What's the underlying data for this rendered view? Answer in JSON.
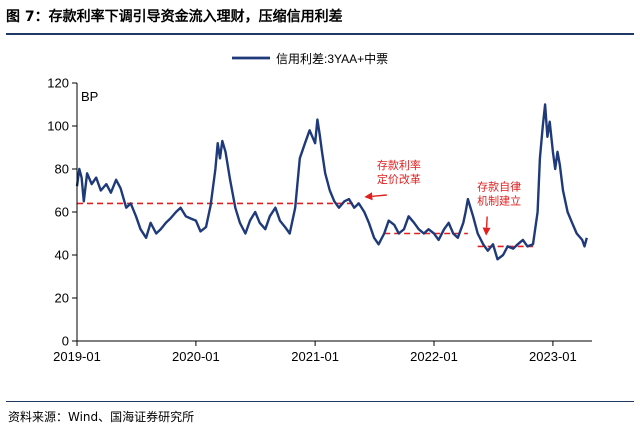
{
  "figure": {
    "title": "图 7：存款利率下调引导资金流入理财，压缩信用利差",
    "source": "资料来源：Wind、国海证券研究所"
  },
  "chart_data": {
    "type": "line",
    "title": "",
    "xlabel": "",
    "ylabel": "",
    "unit_label": "BP",
    "xlim": [
      "2019-01",
      "2023-05"
    ],
    "ylim": [
      0,
      120
    ],
    "y_ticks": [
      0,
      20,
      40,
      60,
      80,
      100,
      120
    ],
    "x_ticks": [
      "2019-01",
      "2020-01",
      "2021-01",
      "2022-01",
      "2023-01"
    ],
    "grid": false,
    "legend": "top-center",
    "series": [
      {
        "name": "信用利差:3YAA+中票",
        "color": "#1f3a7a",
        "points": [
          [
            "2019-01-01",
            72
          ],
          [
            "2019-01-08",
            80
          ],
          [
            "2019-01-15",
            76
          ],
          [
            "2019-01-22",
            65
          ],
          [
            "2019-02-01",
            78
          ],
          [
            "2019-02-15",
            73
          ],
          [
            "2019-03-01",
            76
          ],
          [
            "2019-03-15",
            70
          ],
          [
            "2019-04-01",
            73
          ],
          [
            "2019-04-15",
            69
          ],
          [
            "2019-05-01",
            75
          ],
          [
            "2019-05-15",
            71
          ],
          [
            "2019-06-01",
            62
          ],
          [
            "2019-06-15",
            64
          ],
          [
            "2019-07-01",
            58
          ],
          [
            "2019-07-15",
            52
          ],
          [
            "2019-08-01",
            48
          ],
          [
            "2019-08-15",
            55
          ],
          [
            "2019-09-01",
            50
          ],
          [
            "2019-09-15",
            52
          ],
          [
            "2019-10-01",
            55
          ],
          [
            "2019-10-15",
            57
          ],
          [
            "2019-11-01",
            60
          ],
          [
            "2019-11-15",
            62
          ],
          [
            "2019-12-01",
            58
          ],
          [
            "2019-12-15",
            57
          ],
          [
            "2020-01-01",
            56
          ],
          [
            "2020-01-15",
            51
          ],
          [
            "2020-02-01",
            53
          ],
          [
            "2020-02-15",
            63
          ],
          [
            "2020-03-01",
            80
          ],
          [
            "2020-03-08",
            92
          ],
          [
            "2020-03-15",
            85
          ],
          [
            "2020-03-22",
            93
          ],
          [
            "2020-04-01",
            88
          ],
          [
            "2020-04-15",
            75
          ],
          [
            "2020-05-01",
            62
          ],
          [
            "2020-05-15",
            55
          ],
          [
            "2020-06-01",
            50
          ],
          [
            "2020-06-15",
            56
          ],
          [
            "2020-07-01",
            60
          ],
          [
            "2020-07-15",
            55
          ],
          [
            "2020-08-01",
            52
          ],
          [
            "2020-08-15",
            58
          ],
          [
            "2020-09-01",
            62
          ],
          [
            "2020-09-15",
            56
          ],
          [
            "2020-10-01",
            53
          ],
          [
            "2020-10-15",
            50
          ],
          [
            "2020-11-01",
            62
          ],
          [
            "2020-11-15",
            85
          ],
          [
            "2020-12-01",
            92
          ],
          [
            "2020-12-15",
            98
          ],
          [
            "2021-01-01",
            92
          ],
          [
            "2021-01-08",
            103
          ],
          [
            "2021-01-15",
            96
          ],
          [
            "2021-01-22",
            88
          ],
          [
            "2021-02-01",
            78
          ],
          [
            "2021-02-15",
            70
          ],
          [
            "2021-03-01",
            65
          ],
          [
            "2021-03-15",
            62
          ],
          [
            "2021-04-01",
            65
          ],
          [
            "2021-04-15",
            66
          ],
          [
            "2021-05-01",
            62
          ],
          [
            "2021-05-15",
            64
          ],
          [
            "2021-06-01",
            60
          ],
          [
            "2021-06-15",
            55
          ],
          [
            "2021-07-01",
            48
          ],
          [
            "2021-07-15",
            45
          ],
          [
            "2021-08-01",
            50
          ],
          [
            "2021-08-15",
            56
          ],
          [
            "2021-09-01",
            54
          ],
          [
            "2021-09-15",
            50
          ],
          [
            "2021-10-01",
            52
          ],
          [
            "2021-10-15",
            58
          ],
          [
            "2021-11-01",
            55
          ],
          [
            "2021-11-15",
            52
          ],
          [
            "2021-12-01",
            50
          ],
          [
            "2021-12-15",
            52
          ],
          [
            "2022-01-01",
            50
          ],
          [
            "2022-01-15",
            47
          ],
          [
            "2022-02-01",
            52
          ],
          [
            "2022-02-15",
            55
          ],
          [
            "2022-03-01",
            50
          ],
          [
            "2022-03-15",
            48
          ],
          [
            "2022-04-01",
            55
          ],
          [
            "2022-04-08",
            60
          ],
          [
            "2022-04-15",
            66
          ],
          [
            "2022-05-01",
            58
          ],
          [
            "2022-05-15",
            50
          ],
          [
            "2022-06-01",
            45
          ],
          [
            "2022-06-15",
            42
          ],
          [
            "2022-07-01",
            45
          ],
          [
            "2022-07-15",
            38
          ],
          [
            "2022-08-01",
            40
          ],
          [
            "2022-08-15",
            44
          ],
          [
            "2022-09-01",
            43
          ],
          [
            "2022-09-15",
            45
          ],
          [
            "2022-10-01",
            47
          ],
          [
            "2022-10-15",
            44
          ],
          [
            "2022-11-01",
            45
          ],
          [
            "2022-11-15",
            60
          ],
          [
            "2022-11-22",
            85
          ],
          [
            "2022-12-01",
            100
          ],
          [
            "2022-12-08",
            110
          ],
          [
            "2022-12-15",
            95
          ],
          [
            "2022-12-22",
            102
          ],
          [
            "2023-01-01",
            88
          ],
          [
            "2023-01-08",
            80
          ],
          [
            "2023-01-15",
            88
          ],
          [
            "2023-01-22",
            82
          ],
          [
            "2023-02-01",
            70
          ],
          [
            "2023-02-15",
            60
          ],
          [
            "2023-03-01",
            55
          ],
          [
            "2023-03-15",
            50
          ],
          [
            "2023-04-01",
            47
          ],
          [
            "2023-04-08",
            44
          ],
          [
            "2023-04-15",
            48
          ]
        ]
      }
    ],
    "reference_lines": [
      {
        "from": "2019-01-01",
        "to": "2021-05-15",
        "value": 64,
        "color": "#e02020"
      },
      {
        "from": "2021-08-01",
        "to": "2022-04-15",
        "value": 50,
        "color": "#e02020"
      },
      {
        "from": "2022-05-15",
        "to": "2022-11-01",
        "value": 44,
        "color": "#e02020"
      }
    ],
    "annotations": [
      {
        "lines": [
          "存款利率",
          "定价改革"
        ],
        "color": "#e02020",
        "arrow_to": [
          "2021-06-01",
          67
        ],
        "text_at": [
          "2021-09-15",
          80
        ]
      },
      {
        "lines": [
          "存款自律",
          "机制建立"
        ],
        "color": "#e02020",
        "arrow_to": [
          "2022-06-10",
          49
        ],
        "text_at": [
          "2022-07-20",
          70
        ]
      }
    ]
  }
}
